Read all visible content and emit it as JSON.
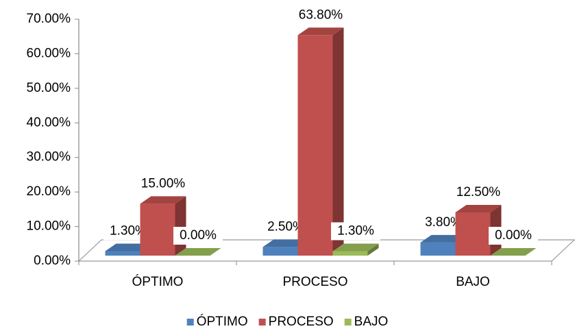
{
  "chart_data": {
    "type": "bar3d",
    "categories": [
      "ÓPTIMO",
      "PROCESO",
      "BAJO"
    ],
    "series": [
      {
        "name": "ÓPTIMO",
        "color": "#4f81bd",
        "values": [
          1.3,
          2.5,
          3.8
        ],
        "value_labels": [
          "1.30%",
          "2.50%",
          "3.80%"
        ]
      },
      {
        "name": "PROCESO",
        "color": "#c0504d",
        "values": [
          15,
          63.8,
          12.5
        ],
        "value_labels": [
          "15.00%",
          "63.80%",
          "12.50%"
        ]
      },
      {
        "name": "BAJO",
        "color": "#9bbb59",
        "values": [
          0,
          1.3,
          0
        ],
        "value_labels": [
          "0.00%",
          "1.30%",
          "0.00%"
        ]
      }
    ],
    "ylim": [
      0,
      70
    ],
    "yticks": [
      {
        "value": 0,
        "label": "0.00%"
      },
      {
        "value": 10,
        "label": "10.00%"
      },
      {
        "value": 20,
        "label": "20.00%"
      },
      {
        "value": 30,
        "label": "30.00%"
      },
      {
        "value": 40,
        "label": "40.00%"
      },
      {
        "value": 50,
        "label": "50.00%"
      },
      {
        "value": 60,
        "label": "60.00%"
      },
      {
        "value": 70,
        "label": "70.00%"
      }
    ],
    "legend": "bottom"
  }
}
